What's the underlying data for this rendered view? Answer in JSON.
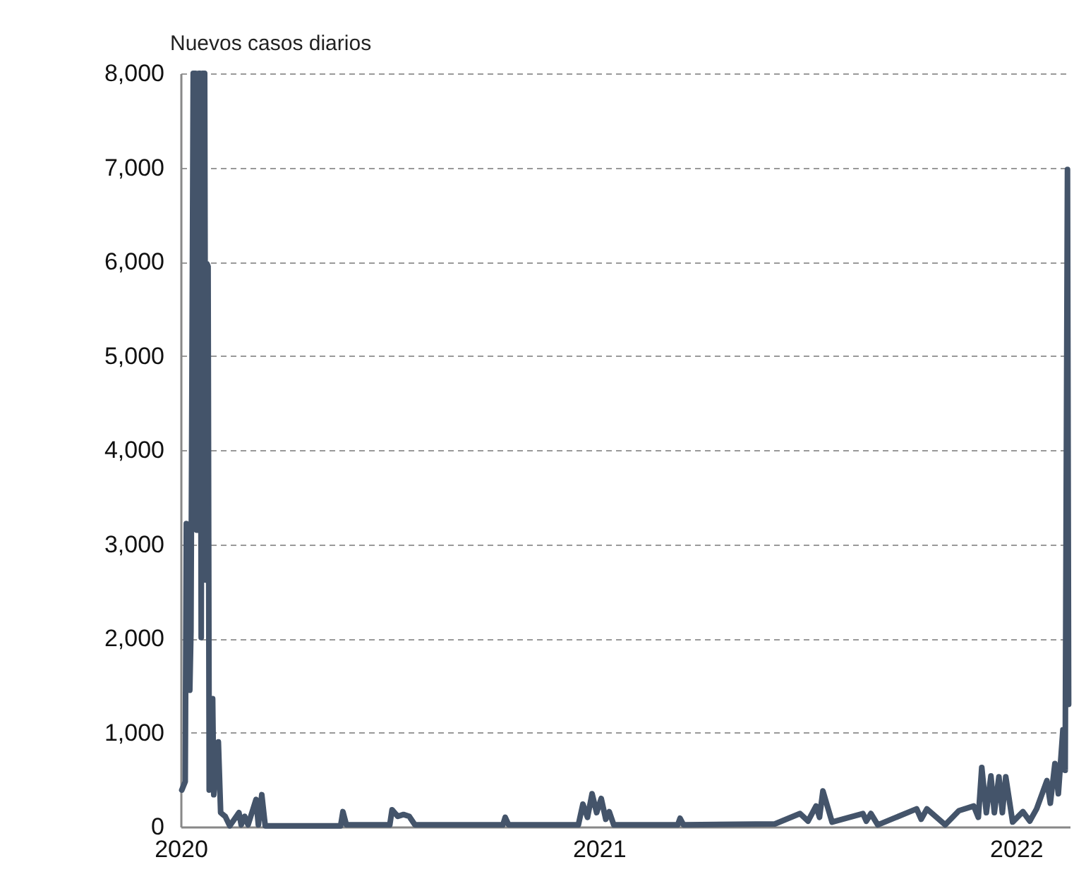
{
  "chart_data": {
    "type": "line",
    "ylabel": "Nuevos casos diarios",
    "x": [
      "2020-01-02",
      "2020-01-05",
      "2020-01-06",
      "2020-01-08",
      "2020-01-09",
      "2020-01-10",
      "2020-01-12",
      "2020-01-14",
      "2020-01-15",
      "2020-01-16",
      "2020-01-17",
      "2020-01-18",
      "2020-01-19",
      "2020-01-20",
      "2020-01-22",
      "2020-01-23",
      "2020-01-24",
      "2020-01-25",
      "2020-01-26",
      "2020-01-29",
      "2020-01-30",
      "2020-02-03",
      "2020-02-05",
      "2020-02-09",
      "2020-02-13",
      "2020-02-21",
      "2020-02-23",
      "2020-02-26",
      "2020-02-29",
      "2020-03-07",
      "2020-03-09",
      "2020-03-12",
      "2020-03-15",
      "2020-05-20",
      "2020-05-22",
      "2020-05-25",
      "2020-07-02",
      "2020-07-04",
      "2020-07-09",
      "2020-07-14",
      "2020-07-19",
      "2020-07-24",
      "2020-10-09",
      "2020-10-11",
      "2020-10-14",
      "2020-12-14",
      "2020-12-18",
      "2020-12-22",
      "2020-12-26",
      "2020-12-30",
      "2021-01-03",
      "2021-01-07",
      "2021-01-10",
      "2021-01-14",
      "2021-03-11",
      "2021-03-13",
      "2021-03-16",
      "2021-06-04",
      "2021-06-26",
      "2021-07-03",
      "2021-07-10",
      "2021-07-13",
      "2021-07-16",
      "2021-07-24",
      "2021-08-20",
      "2021-08-23",
      "2021-08-27",
      "2021-09-02",
      "2021-10-06",
      "2021-10-10",
      "2021-10-15",
      "2021-10-31",
      "2021-11-12",
      "2021-11-25",
      "2021-11-29",
      "2021-12-02",
      "2021-12-06",
      "2021-12-10",
      "2021-12-13",
      "2021-12-17",
      "2021-12-20",
      "2021-12-23",
      "2021-12-29",
      "2022-01-07",
      "2022-01-13",
      "2022-01-19",
      "2022-01-28",
      "2022-01-31",
      "2022-02-04",
      "2022-02-07",
      "2022-02-11",
      "2022-02-13",
      "2022-02-15",
      "2022-02-16"
    ],
    "series": [
      {
        "color": "#44546a",
        "values": [
          390,
          480,
          3220,
          3200,
          1450,
          2070,
          8000,
          8000,
          3150,
          3150,
          8000,
          8000,
          2010,
          8000,
          8000,
          2620,
          5980,
          5950,
          390,
          1360,
          340,
          900,
          150,
          110,
          10,
          150,
          20,
          110,
          20,
          290,
          20,
          340,
          10,
          10,
          160,
          20,
          20,
          180,
          110,
          130,
          110,
          20,
          20,
          100,
          20,
          20,
          240,
          100,
          350,
          150,
          300,
          80,
          160,
          20,
          20,
          90,
          20,
          30,
          140,
          60,
          220,
          100,
          380,
          50,
          140,
          60,
          140,
          20,
          190,
          80,
          190,
          20,
          170,
          220,
          100,
          630,
          150,
          540,
          150,
          530,
          150,
          530,
          50,
          160,
          60,
          190,
          490,
          250,
          670,
          350,
          1030,
          600,
          6980,
          1300
        ]
      }
    ],
    "xlim": [
      "2020-01-01",
      "2022-02-17"
    ],
    "xticks": [
      {
        "value": "2020-01-01",
        "label": "2020"
      },
      {
        "value": "2021-01-01",
        "label": "2021"
      },
      {
        "value": "2022-01-01",
        "label": "2022"
      }
    ],
    "ylim": [
      0,
      8000
    ],
    "yticks": [
      0,
      {
        "value": 1000,
        "label": "1,000"
      },
      {
        "value": 2000,
        "label": "2,000"
      },
      {
        "value": 3000,
        "label": "3,000"
      },
      {
        "value": 4000,
        "label": "4,000"
      },
      {
        "value": 5000,
        "label": "5,000"
      },
      {
        "value": 6000,
        "label": "6,000"
      },
      {
        "value": 7000,
        "label": "7,000"
      },
      {
        "value": 8000,
        "label": "8,000"
      }
    ],
    "grid": "y",
    "marker": "none",
    "line_style": "solid"
  }
}
